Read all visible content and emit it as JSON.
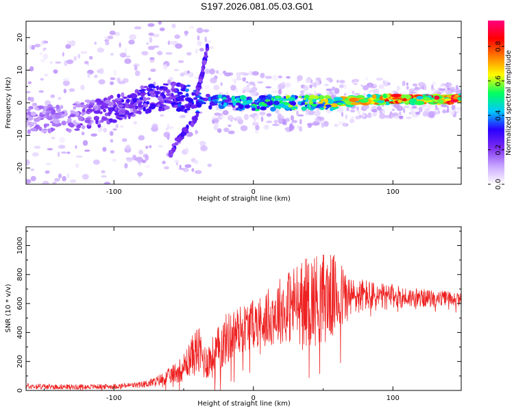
{
  "title": "S197.2026.081.05.03.G01",
  "colors": {
    "spec_low": "#e6d9ff",
    "spec_high": "#7c2cf0",
    "snr_line": "#ee2222",
    "axis": "#000000"
  },
  "chart_data": [
    {
      "type": "heatmap",
      "name": "spectrogram",
      "xlabel": "Height of straight line (km)",
      "ylabel": "Frequency (Hz)",
      "xlim": [
        -163,
        149
      ],
      "ylim": [
        -25,
        25
      ],
      "xticks": [
        -100,
        0,
        100
      ],
      "xtick_labels": [
        "-100",
        "0",
        "100"
      ],
      "yticks": [
        20,
        10,
        0,
        -10,
        -20
      ],
      "ytick_labels": [
        "20",
        "10",
        "0",
        "-10",
        "-20"
      ],
      "colorbar": {
        "label": "Normalized spectral amplitude",
        "range": [
          0,
          0.95
        ],
        "ticks": [
          0.8,
          0.6,
          0.4,
          0.2,
          0.0
        ],
        "tick_labels": [
          "0.8",
          "0.6",
          "0.4",
          "0.2",
          "0.0"
        ],
        "stops": [
          "#ffffff",
          "#c9a6ff",
          "#7c2cf0",
          "#2a00ff",
          "#00c8ff",
          "#00ff60",
          "#ffff00",
          "#ff8000",
          "#ff0000",
          "#ff0080"
        ]
      },
      "ridge": {
        "x": [
          -160,
          -140,
          -120,
          -100,
          -80,
          -60,
          -40,
          -20,
          0,
          20,
          40,
          60,
          80,
          100,
          120,
          140,
          149
        ],
        "freq": [
          -5,
          -5,
          -4,
          -2,
          1,
          2,
          1,
          0,
          0,
          0,
          0,
          0,
          1,
          1,
          1,
          1,
          1
        ],
        "amplitude": [
          0.15,
          0.18,
          0.2,
          0.25,
          0.3,
          0.3,
          0.4,
          0.45,
          0.5,
          0.55,
          0.6,
          0.65,
          0.75,
          0.8,
          0.8,
          0.85,
          0.85
        ]
      },
      "branch_upper": {
        "x": [
          -40,
          -37,
          -35,
          -33
        ],
        "freq": [
          4,
          8,
          13,
          17
        ]
      },
      "branch_lower": {
        "x": [
          -60,
          -55,
          -48,
          -40
        ],
        "freq": [
          -16,
          -12,
          -8,
          -4
        ]
      }
    },
    {
      "type": "line",
      "name": "snr",
      "xlabel": "Height of straight line (km)",
      "ylabel": "SNR (10 * v/v)",
      "xlim": [
        -163,
        149
      ],
      "ylim": [
        0,
        1130
      ],
      "xticks": [
        -100,
        0,
        100
      ],
      "xtick_labels": [
        "-100",
        "0",
        "100"
      ],
      "yticks": [
        0,
        200,
        400,
        600,
        800,
        1000
      ],
      "ytick_labels": [
        "0",
        "200",
        "400",
        "600",
        "800",
        "1000"
      ],
      "envelope": {
        "x": [
          -163,
          -140,
          -120,
          -100,
          -80,
          -70,
          -60,
          -50,
          -45,
          -40,
          -35,
          -30,
          -25,
          -20,
          -10,
          0,
          10,
          20,
          30,
          40,
          50,
          60,
          70,
          80,
          90,
          100,
          110,
          120,
          130,
          140,
          149
        ],
        "mean": [
          30,
          25,
          25,
          28,
          40,
          60,
          100,
          160,
          230,
          280,
          200,
          220,
          280,
          350,
          420,
          460,
          500,
          560,
          600,
          620,
          640,
          650,
          640,
          660,
          640,
          650,
          640,
          640,
          630,
          640,
          630
        ],
        "noise": [
          15,
          12,
          12,
          12,
          15,
          25,
          40,
          70,
          90,
          130,
          90,
          100,
          120,
          130,
          120,
          120,
          140,
          170,
          200,
          230,
          230,
          200,
          100,
          80,
          70,
          60,
          50,
          45,
          40,
          35,
          30
        ]
      }
    }
  ]
}
